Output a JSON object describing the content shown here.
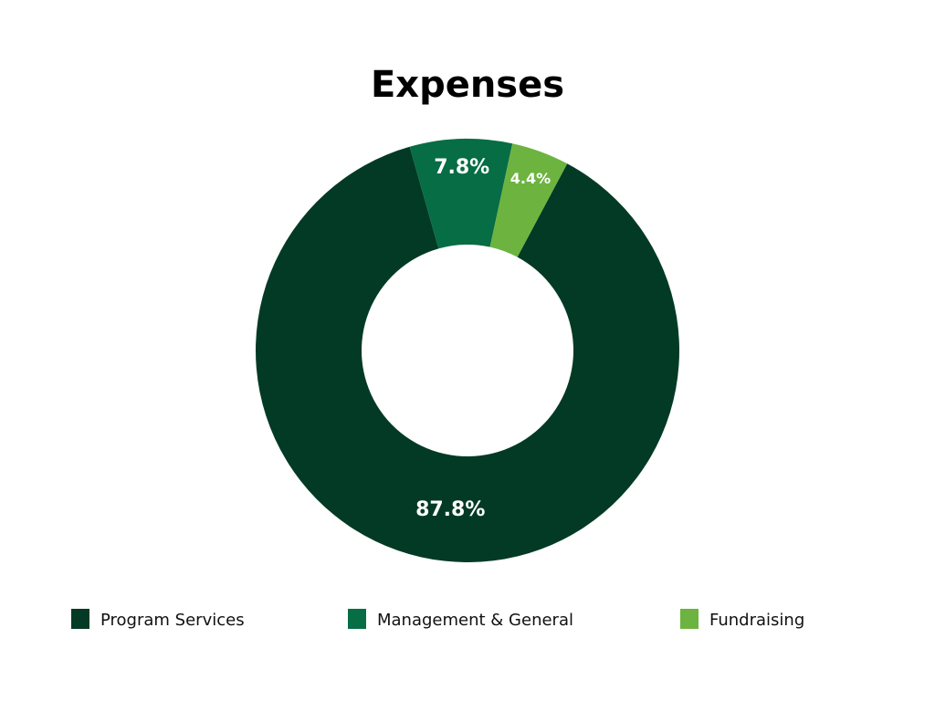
{
  "chart_data": {
    "type": "donut",
    "title": "Expenses",
    "categories": [
      "Program Services",
      "Management & General",
      "Fundraising"
    ],
    "values": [
      87.8,
      7.8,
      4.4
    ],
    "value_labels": [
      "87.8%",
      "7.8%",
      "4.4%"
    ],
    "colors": [
      "#023a25",
      "#066d45",
      "#6db33f"
    ],
    "legend": "bottom"
  }
}
